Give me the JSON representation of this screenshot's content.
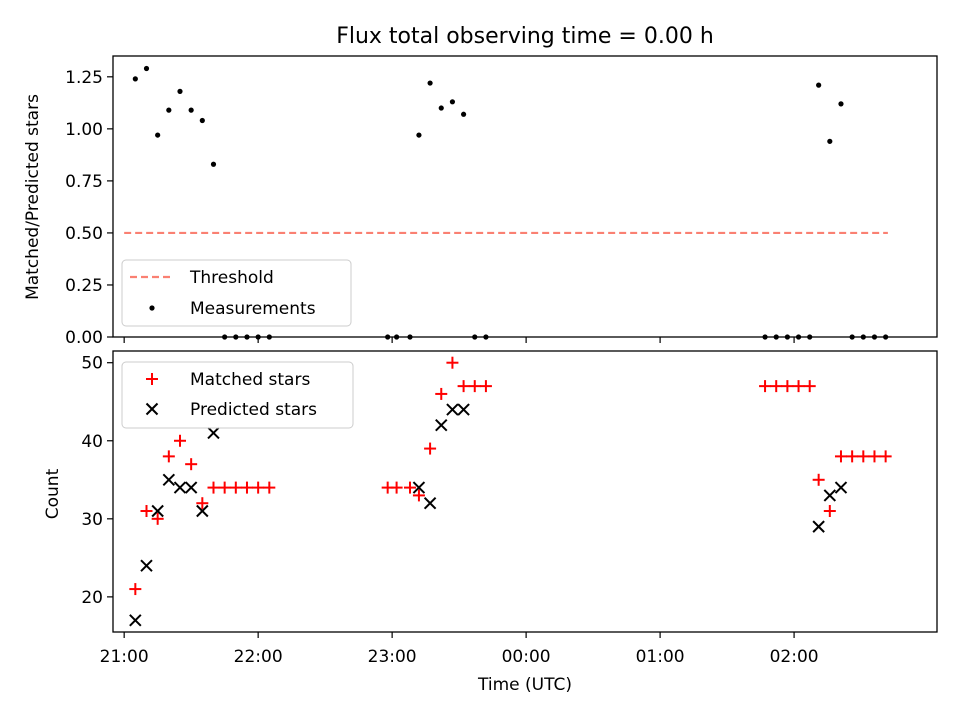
{
  "title": "Flux total observing time = 0.00 h",
  "chart_data": [
    {
      "type": "scatter",
      "title": "Flux total observing time = 0.00 h",
      "xlabel": "",
      "ylabel": "Matched/Predicted stars",
      "ylim": [
        0,
        1.35
      ],
      "yticks": [
        "0.00",
        "0.25",
        "0.50",
        "0.75",
        "1.00",
        "1.25"
      ],
      "ytick_values": [
        0,
        0.25,
        0.5,
        0.75,
        1.0,
        1.25
      ],
      "legend_position": "lower-left",
      "grid": false,
      "series": [
        {
          "name": "Threshold",
          "kind": "dashed-line",
          "color": "#fa8072",
          "points": [
            [
              "21:00",
              0.5
            ],
            [
              "02:42",
              0.5
            ]
          ]
        },
        {
          "name": "Measurements",
          "kind": "dots",
          "color": "#000000",
          "points": [
            [
              "21:05",
              1.24
            ],
            [
              "21:10",
              1.29
            ],
            [
              "21:15",
              0.97
            ],
            [
              "21:20",
              1.09
            ],
            [
              "21:25",
              1.18
            ],
            [
              "21:30",
              1.09
            ],
            [
              "21:35",
              1.04
            ],
            [
              "21:40",
              0.83
            ],
            [
              "21:45",
              0.0
            ],
            [
              "21:50",
              0.0
            ],
            [
              "21:55",
              0.0
            ],
            [
              "22:00",
              0.0
            ],
            [
              "22:05",
              0.0
            ],
            [
              "22:58",
              0.0
            ],
            [
              "23:02",
              0.0
            ],
            [
              "23:08",
              0.0
            ],
            [
              "23:12",
              0.97
            ],
            [
              "23:17",
              1.22
            ],
            [
              "23:22",
              1.1
            ],
            [
              "23:27",
              1.13
            ],
            [
              "23:32",
              1.07
            ],
            [
              "23:37",
              0.0
            ],
            [
              "23:42",
              0.0
            ],
            [
              "01:47",
              0.0
            ],
            [
              "01:52",
              0.0
            ],
            [
              "01:57",
              0.0
            ],
            [
              "02:02",
              0.0
            ],
            [
              "02:07",
              0.0
            ],
            [
              "02:11",
              1.21
            ],
            [
              "02:16",
              0.94
            ],
            [
              "02:21",
              1.12
            ],
            [
              "02:26",
              0.0
            ],
            [
              "02:31",
              0.0
            ],
            [
              "02:36",
              0.0
            ],
            [
              "02:41",
              0.0
            ]
          ]
        }
      ]
    },
    {
      "type": "scatter",
      "xlabel": "Time (UTC)",
      "ylabel": "Count",
      "ylim": [
        15.5,
        51.5
      ],
      "yticks": [
        "20",
        "30",
        "40",
        "50"
      ],
      "ytick_values": [
        20,
        30,
        40,
        50
      ],
      "xticks": [
        "21:00",
        "22:00",
        "23:00",
        "00:00",
        "01:00",
        "02:00"
      ],
      "xlim": [
        "20:55",
        "03:04"
      ],
      "legend_position": "top-left",
      "grid": false,
      "series": [
        {
          "name": "Matched stars",
          "marker": "plus",
          "color": "#ff0000",
          "points": [
            [
              "21:05",
              21
            ],
            [
              "21:10",
              31
            ],
            [
              "21:15",
              30
            ],
            [
              "21:20",
              38
            ],
            [
              "21:25",
              40
            ],
            [
              "21:30",
              37
            ],
            [
              "21:35",
              32
            ],
            [
              "21:40",
              34
            ],
            [
              "21:45",
              34
            ],
            [
              "21:50",
              34
            ],
            [
              "21:55",
              34
            ],
            [
              "22:00",
              34
            ],
            [
              "22:05",
              34
            ],
            [
              "22:58",
              34
            ],
            [
              "23:02",
              34
            ],
            [
              "23:08",
              34
            ],
            [
              "23:12",
              33
            ],
            [
              "23:17",
              39
            ],
            [
              "23:22",
              46
            ],
            [
              "23:27",
              50
            ],
            [
              "23:32",
              47
            ],
            [
              "23:37",
              47
            ],
            [
              "23:42",
              47
            ],
            [
              "01:47",
              47
            ],
            [
              "01:52",
              47
            ],
            [
              "01:57",
              47
            ],
            [
              "02:02",
              47
            ],
            [
              "02:07",
              47
            ],
            [
              "02:11",
              35
            ],
            [
              "02:16",
              31
            ],
            [
              "02:21",
              38
            ],
            [
              "02:26",
              38
            ],
            [
              "02:31",
              38
            ],
            [
              "02:36",
              38
            ],
            [
              "02:41",
              38
            ]
          ]
        },
        {
          "name": "Predicted stars",
          "marker": "x",
          "color": "#000000",
          "points": [
            [
              "21:05",
              17
            ],
            [
              "21:10",
              24
            ],
            [
              "21:15",
              31
            ],
            [
              "21:20",
              35
            ],
            [
              "21:25",
              34
            ],
            [
              "21:30",
              34
            ],
            [
              "21:35",
              31
            ],
            [
              "21:40",
              41
            ],
            [
              "23:12",
              34
            ],
            [
              "23:17",
              32
            ],
            [
              "23:22",
              42
            ],
            [
              "23:27",
              44
            ],
            [
              "23:32",
              44
            ],
            [
              "02:11",
              29
            ],
            [
              "02:16",
              33
            ],
            [
              "02:21",
              34
            ]
          ]
        }
      ]
    }
  ]
}
